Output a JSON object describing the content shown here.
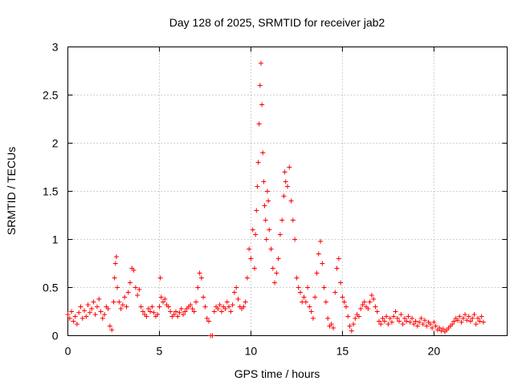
{
  "chart_data": {
    "type": "scatter",
    "title": "Day 128 of 2025, SRMTID for receiver jab2",
    "xlabel": "GPS time / hours",
    "ylabel": "SRMTID / TECUs",
    "xlim": [
      0,
      24
    ],
    "ylim": [
      0,
      3
    ],
    "xticks": [
      0,
      5,
      10,
      15,
      20
    ],
    "yticks": [
      0,
      0.5,
      1,
      1.5,
      2,
      2.5,
      3
    ],
    "xtick_labels": [
      "0",
      "5",
      "10",
      "15",
      "20"
    ],
    "ytick_labels": [
      "0",
      "0.5",
      "1",
      "1.5",
      "2",
      "2.5",
      "3"
    ],
    "grid": true,
    "marker": "+",
    "color": "#ff0000",
    "series": [
      {
        "name": "SRMTID",
        "points": [
          [
            0.0,
            0.22
          ],
          [
            0.1,
            0.18
          ],
          [
            0.2,
            0.25
          ],
          [
            0.3,
            0.15
          ],
          [
            0.4,
            0.2
          ],
          [
            0.5,
            0.12
          ],
          [
            0.6,
            0.24
          ],
          [
            0.7,
            0.3
          ],
          [
            0.8,
            0.18
          ],
          [
            0.9,
            0.26
          ],
          [
            1.0,
            0.2
          ],
          [
            1.1,
            0.32
          ],
          [
            1.2,
            0.24
          ],
          [
            1.3,
            0.28
          ],
          [
            1.4,
            0.35
          ],
          [
            1.5,
            0.22
          ],
          [
            1.6,
            0.3
          ],
          [
            1.7,
            0.38
          ],
          [
            1.8,
            0.25
          ],
          [
            1.9,
            0.18
          ],
          [
            2.0,
            0.22
          ],
          [
            2.1,
            0.3
          ],
          [
            2.2,
            0.28
          ],
          [
            2.3,
            0.1
          ],
          [
            2.4,
            0.06
          ],
          [
            2.5,
            0.35
          ],
          [
            2.55,
            0.6
          ],
          [
            2.6,
            0.75
          ],
          [
            2.65,
            0.82
          ],
          [
            2.7,
            0.5
          ],
          [
            2.8,
            0.35
          ],
          [
            2.9,
            0.28
          ],
          [
            3.0,
            0.32
          ],
          [
            3.1,
            0.4
          ],
          [
            3.2,
            0.3
          ],
          [
            3.3,
            0.45
          ],
          [
            3.4,
            0.55
          ],
          [
            3.5,
            0.7
          ],
          [
            3.6,
            0.68
          ],
          [
            3.7,
            0.5
          ],
          [
            3.8,
            0.42
          ],
          [
            3.9,
            0.48
          ],
          [
            4.0,
            0.3
          ],
          [
            4.1,
            0.25
          ],
          [
            4.2,
            0.22
          ],
          [
            4.3,
            0.2
          ],
          [
            4.4,
            0.28
          ],
          [
            4.5,
            0.25
          ],
          [
            4.6,
            0.3
          ],
          [
            4.7,
            0.24
          ],
          [
            4.8,
            0.2
          ],
          [
            4.9,
            0.22
          ],
          [
            5.0,
            0.3
          ],
          [
            5.05,
            0.6
          ],
          [
            5.1,
            0.4
          ],
          [
            5.2,
            0.35
          ],
          [
            5.3,
            0.38
          ],
          [
            5.4,
            0.32
          ],
          [
            5.5,
            0.3
          ],
          [
            5.6,
            0.25
          ],
          [
            5.7,
            0.2
          ],
          [
            5.8,
            0.22
          ],
          [
            5.9,
            0.25
          ],
          [
            6.0,
            0.2
          ],
          [
            6.1,
            0.24
          ],
          [
            6.2,
            0.28
          ],
          [
            6.3,
            0.22
          ],
          [
            6.4,
            0.25
          ],
          [
            6.5,
            0.28
          ],
          [
            6.6,
            0.3
          ],
          [
            6.7,
            0.32
          ],
          [
            6.8,
            0.28
          ],
          [
            6.9,
            0.25
          ],
          [
            7.0,
            0.35
          ],
          [
            7.1,
            0.5
          ],
          [
            7.2,
            0.65
          ],
          [
            7.3,
            0.6
          ],
          [
            7.4,
            0.4
          ],
          [
            7.5,
            0.3
          ],
          [
            7.6,
            0.18
          ],
          [
            7.7,
            0.15
          ],
          [
            7.8,
            0.0
          ],
          [
            7.9,
            0.0
          ],
          [
            8.0,
            0.25
          ],
          [
            8.1,
            0.3
          ],
          [
            8.2,
            0.28
          ],
          [
            8.3,
            0.32
          ],
          [
            8.4,
            0.25
          ],
          [
            8.5,
            0.3
          ],
          [
            8.6,
            0.28
          ],
          [
            8.7,
            0.35
          ],
          [
            8.8,
            0.3
          ],
          [
            8.9,
            0.25
          ],
          [
            9.0,
            0.32
          ],
          [
            9.1,
            0.45
          ],
          [
            9.2,
            0.5
          ],
          [
            9.3,
            0.38
          ],
          [
            9.4,
            0.3
          ],
          [
            9.5,
            0.28
          ],
          [
            9.6,
            0.3
          ],
          [
            9.7,
            0.35
          ],
          [
            9.8,
            0.6
          ],
          [
            9.9,
            0.9
          ],
          [
            10.0,
            0.8
          ],
          [
            10.1,
            1.1
          ],
          [
            10.2,
            0.7
          ],
          [
            10.25,
            1.05
          ],
          [
            10.3,
            1.3
          ],
          [
            10.35,
            1.55
          ],
          [
            10.4,
            1.8
          ],
          [
            10.45,
            2.2
          ],
          [
            10.5,
            2.6
          ],
          [
            10.55,
            2.83
          ],
          [
            10.6,
            2.4
          ],
          [
            10.65,
            1.9
          ],
          [
            10.7,
            1.6
          ],
          [
            10.75,
            1.35
          ],
          [
            10.8,
            1.2
          ],
          [
            10.85,
            1.0
          ],
          [
            10.9,
            1.5
          ],
          [
            10.95,
            1.4
          ],
          [
            11.0,
            1.1
          ],
          [
            11.1,
            0.9
          ],
          [
            11.2,
            0.7
          ],
          [
            11.3,
            0.55
          ],
          [
            11.4,
            0.65
          ],
          [
            11.5,
            0.8
          ],
          [
            11.6,
            1.05
          ],
          [
            11.7,
            1.2
          ],
          [
            11.8,
            1.45
          ],
          [
            11.85,
            1.7
          ],
          [
            11.9,
            1.6
          ],
          [
            12.0,
            1.55
          ],
          [
            12.1,
            1.75
          ],
          [
            12.2,
            1.4
          ],
          [
            12.3,
            1.2
          ],
          [
            12.4,
            1.0
          ],
          [
            12.5,
            0.6
          ],
          [
            12.6,
            0.5
          ],
          [
            12.7,
            0.45
          ],
          [
            12.8,
            0.35
          ],
          [
            12.9,
            0.4
          ],
          [
            13.0,
            0.35
          ],
          [
            13.1,
            0.5
          ],
          [
            13.2,
            0.3
          ],
          [
            13.3,
            0.25
          ],
          [
            13.4,
            0.18
          ],
          [
            13.5,
            0.4
          ],
          [
            13.6,
            0.65
          ],
          [
            13.7,
            0.85
          ],
          [
            13.8,
            0.98
          ],
          [
            13.9,
            0.75
          ],
          [
            14.0,
            0.5
          ],
          [
            14.1,
            0.35
          ],
          [
            14.2,
            0.18
          ],
          [
            14.3,
            0.1
          ],
          [
            14.4,
            0.12
          ],
          [
            14.5,
            0.08
          ],
          [
            14.6,
            0.45
          ],
          [
            14.7,
            0.7
          ],
          [
            14.8,
            0.8
          ],
          [
            14.9,
            0.55
          ],
          [
            15.0,
            0.4
          ],
          [
            15.1,
            0.35
          ],
          [
            15.2,
            0.3
          ],
          [
            15.3,
            0.2
          ],
          [
            15.4,
            0.1
          ],
          [
            15.5,
            0.05
          ],
          [
            15.6,
            0.12
          ],
          [
            15.7,
            0.18
          ],
          [
            15.8,
            0.22
          ],
          [
            15.9,
            0.2
          ],
          [
            16.0,
            0.28
          ],
          [
            16.1,
            0.32
          ],
          [
            16.2,
            0.35
          ],
          [
            16.3,
            0.3
          ],
          [
            16.4,
            0.28
          ],
          [
            16.5,
            0.35
          ],
          [
            16.6,
            0.42
          ],
          [
            16.7,
            0.38
          ],
          [
            16.8,
            0.3
          ],
          [
            16.9,
            0.25
          ],
          [
            17.0,
            0.15
          ],
          [
            17.1,
            0.12
          ],
          [
            17.2,
            0.18
          ],
          [
            17.3,
            0.15
          ],
          [
            17.4,
            0.2
          ],
          [
            17.5,
            0.12
          ],
          [
            17.6,
            0.18
          ],
          [
            17.7,
            0.14
          ],
          [
            17.8,
            0.2
          ],
          [
            17.9,
            0.25
          ],
          [
            18.0,
            0.18
          ],
          [
            18.1,
            0.15
          ],
          [
            18.2,
            0.22
          ],
          [
            18.3,
            0.12
          ],
          [
            18.4,
            0.18
          ],
          [
            18.5,
            0.15
          ],
          [
            18.6,
            0.2
          ],
          [
            18.7,
            0.14
          ],
          [
            18.8,
            0.18
          ],
          [
            18.9,
            0.12
          ],
          [
            19.0,
            0.15
          ],
          [
            19.1,
            0.1
          ],
          [
            19.2,
            0.14
          ],
          [
            19.3,
            0.18
          ],
          [
            19.4,
            0.12
          ],
          [
            19.5,
            0.16
          ],
          [
            19.6,
            0.1
          ],
          [
            19.7,
            0.14
          ],
          [
            19.8,
            0.12
          ],
          [
            19.9,
            0.08
          ],
          [
            20.0,
            0.14
          ],
          [
            20.1,
            0.1
          ],
          [
            20.2,
            0.06
          ],
          [
            20.3,
            0.08
          ],
          [
            20.4,
            0.05
          ],
          [
            20.5,
            0.07
          ],
          [
            20.6,
            0.04
          ],
          [
            20.7,
            0.06
          ],
          [
            20.8,
            0.08
          ],
          [
            20.9,
            0.1
          ],
          [
            21.0,
            0.12
          ],
          [
            21.1,
            0.15
          ],
          [
            21.2,
            0.18
          ],
          [
            21.3,
            0.16
          ],
          [
            21.4,
            0.2
          ],
          [
            21.5,
            0.14
          ],
          [
            21.6,
            0.18
          ],
          [
            21.7,
            0.22
          ],
          [
            21.8,
            0.16
          ],
          [
            21.9,
            0.2
          ],
          [
            22.0,
            0.15
          ],
          [
            22.1,
            0.18
          ],
          [
            22.2,
            0.22
          ],
          [
            22.3,
            0.12
          ],
          [
            22.4,
            0.18
          ],
          [
            22.5,
            0.15
          ],
          [
            22.6,
            0.2
          ],
          [
            22.7,
            0.14
          ]
        ]
      }
    ]
  }
}
